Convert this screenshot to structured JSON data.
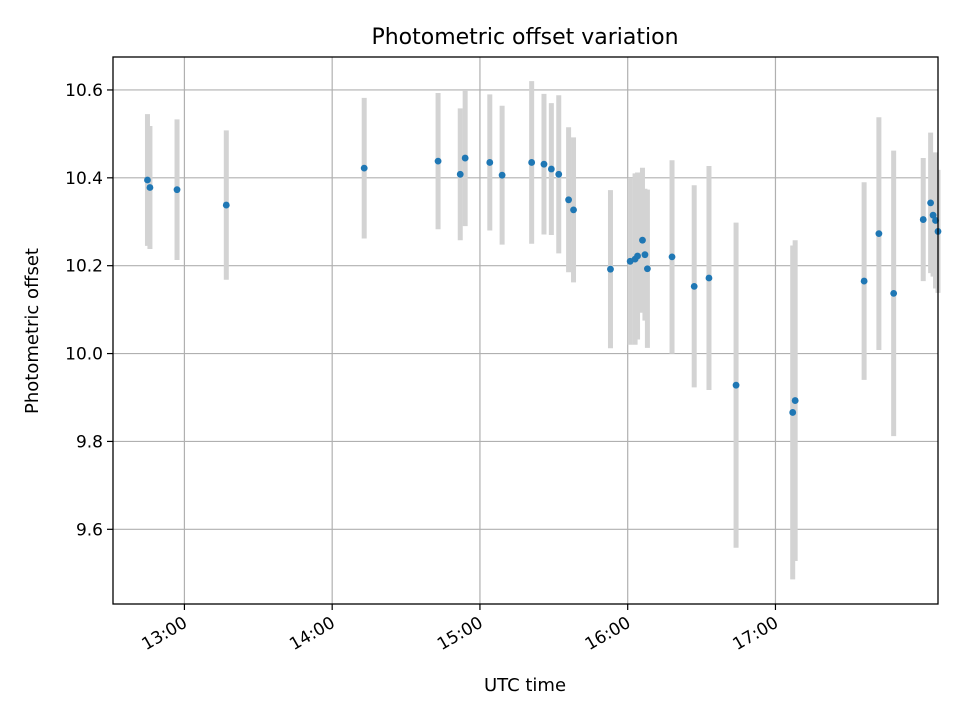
{
  "chart_data": {
    "type": "scatter",
    "title": "Photometric offset variation",
    "xlabel": "UTC time",
    "ylabel": "Photometric offset",
    "x_tick_labels": [
      "13:00",
      "14:00",
      "15:00",
      "16:00",
      "17:00"
    ],
    "x_ticks": [
      "13:00",
      "14:00",
      "15:00",
      "16:00",
      "17:00"
    ],
    "y_tick_labels": [
      "9.6",
      "9.8",
      "10.0",
      "10.2",
      "10.4",
      "10.6"
    ],
    "y_ticks": [
      9.6,
      9.8,
      10.0,
      10.2,
      10.4,
      10.6
    ],
    "xlim": [
      "12:31",
      "18:06"
    ],
    "ylim": [
      9.43,
      10.675
    ],
    "grid": true,
    "point_color": "#1f77b4",
    "errorbar_color": "#d3d3d3",
    "points": [
      {
        "x": "12:45",
        "y": 10.395,
        "yerr": 0.15
      },
      {
        "x": "12:46",
        "y": 10.378,
        "yerr": 0.14
      },
      {
        "x": "12:57",
        "y": 10.373,
        "yerr": 0.16
      },
      {
        "x": "13:17",
        "y": 10.338,
        "yerr": 0.17
      },
      {
        "x": "14:13",
        "y": 10.422,
        "yerr": 0.16
      },
      {
        "x": "14:43",
        "y": 10.438,
        "yerr": 0.155
      },
      {
        "x": "14:52",
        "y": 10.408,
        "yerr": 0.15
      },
      {
        "x": "14:54",
        "y": 10.445,
        "yerr": 0.155
      },
      {
        "x": "15:04",
        "y": 10.435,
        "yerr": 0.155
      },
      {
        "x": "15:09",
        "y": 10.406,
        "yerr": 0.158
      },
      {
        "x": "15:21",
        "y": 10.435,
        "yerr": 0.185
      },
      {
        "x": "15:26",
        "y": 10.431,
        "yerr": 0.16
      },
      {
        "x": "15:29",
        "y": 10.42,
        "yerr": 0.15
      },
      {
        "x": "15:32",
        "y": 10.408,
        "yerr": 0.18
      },
      {
        "x": "15:36",
        "y": 10.35,
        "yerr": 0.165
      },
      {
        "x": "15:38",
        "y": 10.327,
        "yerr": 0.165
      },
      {
        "x": "15:53",
        "y": 10.192,
        "yerr": 0.18
      },
      {
        "x": "16:01",
        "y": 10.21,
        "yerr": 0.19
      },
      {
        "x": "16:03",
        "y": 10.215,
        "yerr": 0.195
      },
      {
        "x": "16:04",
        "y": 10.222,
        "yerr": 0.19
      },
      {
        "x": "16:06",
        "y": 10.258,
        "yerr": 0.165
      },
      {
        "x": "16:07",
        "y": 10.225,
        "yerr": 0.15
      },
      {
        "x": "16:08",
        "y": 10.193,
        "yerr": 0.18
      },
      {
        "x": "16:18",
        "y": 10.22,
        "yerr": 0.22
      },
      {
        "x": "16:27",
        "y": 10.153,
        "yerr": 0.23
      },
      {
        "x": "16:33",
        "y": 10.172,
        "yerr": 0.255
      },
      {
        "x": "16:44",
        "y": 9.928,
        "yerr": 0.37
      },
      {
        "x": "17:07",
        "y": 9.866,
        "yerr": 0.38
      },
      {
        "x": "17:08",
        "y": 9.893,
        "yerr": 0.365
      },
      {
        "x": "17:36",
        "y": 10.165,
        "yerr": 0.225
      },
      {
        "x": "17:42",
        "y": 10.273,
        "yerr": 0.265
      },
      {
        "x": "17:48",
        "y": 10.137,
        "yerr": 0.325
      },
      {
        "x": "18:00",
        "y": 10.305,
        "yerr": 0.14
      },
      {
        "x": "18:03",
        "y": 10.343,
        "yerr": 0.16
      },
      {
        "x": "18:04",
        "y": 10.315,
        "yerr": 0.14
      },
      {
        "x": "18:05",
        "y": 10.303,
        "yerr": 0.155
      },
      {
        "x": "18:06",
        "y": 10.278,
        "yerr": 0.14
      }
    ]
  }
}
